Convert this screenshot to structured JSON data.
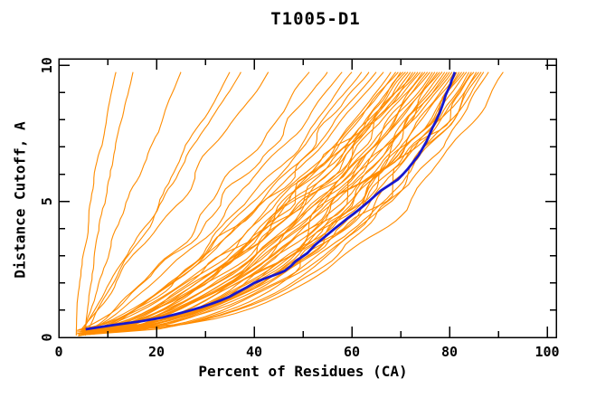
{
  "title": "T1005-D1",
  "chart_data": {
    "type": "line",
    "title": "T1005-D1",
    "xlabel": "Percent of Residues (CA)",
    "ylabel": "Distance Cutoff, A",
    "xlim": [
      0,
      101.9
    ],
    "ylim": [
      0,
      10.25
    ],
    "x_major_ticks": [
      0,
      20,
      40,
      60,
      80,
      100
    ],
    "x_minor_ticks": [
      10,
      30,
      50,
      70,
      90
    ],
    "y_major_ticks": [
      0,
      5,
      10
    ],
    "y_minor_ticks": [
      1,
      2,
      3,
      4,
      6,
      7,
      8,
      9
    ],
    "grid": false,
    "frame": "box-with-inward-ticks",
    "legend": "none",
    "colors": {
      "model_lines": "#ff8c00",
      "highlight_line": "#1717ce",
      "frame": "#000000",
      "text": "#000000",
      "background": "#ffffff"
    },
    "highlight_series": {
      "name": "highlighted model (thick blue)",
      "color": "#1717ce",
      "line_width": 2.8,
      "points_xy": [
        [
          5.5,
          0.3
        ],
        [
          11,
          0.45
        ],
        [
          17,
          0.6
        ],
        [
          21,
          0.72
        ],
        [
          24,
          0.85
        ],
        [
          26.5,
          0.97
        ],
        [
          29,
          1.1
        ],
        [
          31,
          1.22
        ],
        [
          33,
          1.35
        ],
        [
          35,
          1.5
        ],
        [
          36.5,
          1.65
        ],
        [
          38.3,
          1.82
        ],
        [
          40,
          2.0
        ],
        [
          42,
          2.15
        ],
        [
          43.5,
          2.25
        ],
        [
          45,
          2.35
        ],
        [
          46.3,
          2.45
        ],
        [
          47.5,
          2.62
        ],
        [
          48.5,
          2.8
        ],
        [
          49.7,
          2.95
        ],
        [
          50.9,
          3.1
        ],
        [
          51.7,
          3.25
        ],
        [
          52.5,
          3.4
        ],
        [
          53.5,
          3.55
        ],
        [
          54.5,
          3.7
        ],
        [
          55.5,
          3.85
        ],
        [
          56.5,
          4.0
        ],
        [
          57.9,
          4.2
        ],
        [
          59.3,
          4.4
        ],
        [
          60.4,
          4.55
        ],
        [
          61.5,
          4.7
        ],
        [
          62.5,
          4.85
        ],
        [
          63.5,
          5.0
        ],
        [
          64.7,
          5.2
        ],
        [
          66,
          5.4
        ],
        [
          67.7,
          5.6
        ],
        [
          69.4,
          5.8
        ],
        [
          70.5,
          6.0
        ],
        [
          71.5,
          6.2
        ],
        [
          72.6,
          6.45
        ],
        [
          73.7,
          6.7
        ],
        [
          74.5,
          6.95
        ],
        [
          75.3,
          7.2
        ],
        [
          75.9,
          7.45
        ],
        [
          76.5,
          7.7
        ],
        [
          77.1,
          7.9
        ],
        [
          77.6,
          8.1
        ],
        [
          78.0,
          8.25
        ],
        [
          78.3,
          8.4
        ],
        [
          78.8,
          8.65
        ],
        [
          79.2,
          8.9
        ],
        [
          79.7,
          9.1
        ],
        [
          80.2,
          9.3
        ],
        [
          80.45,
          9.45
        ],
        [
          80.7,
          9.55
        ],
        [
          80.9,
          9.65
        ],
        [
          81.1,
          9.75
        ]
      ]
    },
    "model_series": {
      "name": "predicted models (thin orange)",
      "color": "#ff8c00",
      "line_width": 1.1,
      "count": 54,
      "start_x_range": [
        3.5,
        6.5
      ],
      "start_y_range": [
        0.05,
        0.3
      ],
      "top_y": 9.75,
      "top_x_values": [
        11.7,
        15.2,
        25,
        35,
        37.3,
        42.9,
        51.3,
        55,
        58,
        60,
        62,
        63.5,
        65,
        66.5,
        68,
        69,
        69.5,
        70,
        70.5,
        71,
        71.5,
        72,
        72.5,
        73,
        73.5,
        74,
        74.5,
        75,
        75.5,
        76,
        76.5,
        77,
        77.5,
        78,
        78.5,
        79,
        79.5,
        80,
        80.5,
        81,
        81.5,
        82,
        82.5,
        83,
        83.5,
        84,
        84.5,
        85,
        85.5,
        86,
        86.5,
        87,
        88,
        91
      ]
    }
  }
}
